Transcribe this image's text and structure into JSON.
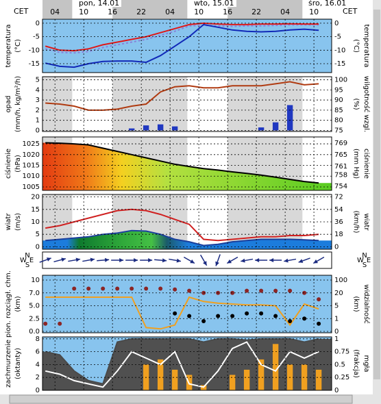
{
  "header": {
    "tz_left": "CET",
    "tz_right": "CET",
    "days": [
      "pon, 14.01",
      "wto, 15.01",
      "śro, 16.01"
    ],
    "xlim": [
      1.4,
      61.7
    ],
    "xticks": [
      {
        "value": 4,
        "label": "04"
      },
      10,
      16,
      22,
      {
        "value": 28,
        "label": "04"
      },
      {
        "value": 34,
        "label": "10"
      },
      {
        "value": 40,
        "label": "16"
      },
      {
        "value": 46,
        "label": "22"
      },
      {
        "value": 52,
        "label": "04"
      },
      {
        "value": 58,
        "label": "10"
      }
    ],
    "night": [
      [
        1.4,
        7.6
      ],
      [
        16,
        31.6
      ],
      [
        40,
        55.6
      ]
    ]
  },
  "chart_data": [
    {
      "type": "line",
      "ylabel": "temperatura",
      "yunit": "(°C)",
      "y2label": "temperatura",
      "y2unit": "(°C)",
      "background": "sky",
      "x": [
        2,
        5,
        8,
        11,
        14,
        17,
        20,
        23,
        26,
        29,
        32,
        35,
        38,
        41,
        44,
        47,
        50,
        53,
        56,
        59
      ],
      "ylim": [
        -18.3,
        1.5
      ],
      "yticks": [
        0,
        -5,
        -10,
        -15
      ],
      "series": [
        {
          "kind": "line",
          "color": "#8a7fd8",
          "dash": true,
          "values": [
            -9.5,
            -10.8,
            -11,
            -10.5,
            -9,
            -8,
            -7,
            -6,
            -4.5,
            -3,
            -1,
            -0.8,
            -1,
            -1.2,
            -1,
            -1,
            -0.8,
            -0.6,
            -0.6,
            -0.6
          ]
        },
        {
          "kind": "line",
          "color": "#e01818",
          "values": [
            -8.5,
            -10,
            -10.2,
            -9.5,
            -8,
            -7,
            -6,
            -5,
            -3.5,
            -2,
            -0.5,
            0,
            -0.3,
            -0.5,
            -0.5,
            -0.3,
            -0.3,
            -0.2,
            -0.3,
            -0.3
          ]
        },
        {
          "kind": "line",
          "color": "#1028b8",
          "values": [
            -14.8,
            -16,
            -16.3,
            -15,
            -14.2,
            -14,
            -14,
            -14.5,
            -12,
            -8.5,
            -5,
            -0.5,
            -1.5,
            -2.5,
            -3,
            -3.2,
            -3,
            -2.5,
            -2.2,
            -2.6
          ]
        }
      ]
    },
    {
      "type": "combo",
      "ylabel": "opad",
      "yunit": "(mm/h, kg/m²/h)",
      "y2label": "wilgotność wzgl.",
      "y2unit": "(%)",
      "background": "daynight",
      "x": [
        2,
        5,
        8,
        11,
        14,
        17,
        20,
        23,
        26,
        29,
        32,
        35,
        38,
        41,
        44,
        47,
        50,
        53,
        56,
        59
      ],
      "ylim": [
        -0.1,
        5.3
      ],
      "yticks": [
        0,
        1,
        2,
        3,
        4,
        5
      ],
      "y2lim": [
        74.5,
        101.5
      ],
      "y2ticks": [
        75,
        80,
        85,
        90,
        95,
        100
      ],
      "series": [
        {
          "kind": "bar",
          "color": "#2038c0",
          "values": [
            0,
            0,
            0,
            0,
            0,
            0,
            0.2,
            0.5,
            0.6,
            0.4,
            0,
            0,
            0,
            0,
            0,
            0.3,
            0.8,
            2.5,
            0,
            0
          ]
        },
        {
          "kind": "line",
          "axis": "y2",
          "color": "#b03a10",
          "values": [
            88.5,
            88,
            87,
            85,
            85,
            85.5,
            87,
            88,
            94,
            96.5,
            97,
            96,
            96,
            97,
            97,
            97,
            98,
            99,
            97.5,
            98
          ]
        }
      ]
    },
    {
      "type": "combo",
      "ylabel": "ciśnienie",
      "yunit": "(hPa)",
      "y2label": "ciśnienie",
      "y2unit": "(mm Hg)",
      "background": "daynight",
      "x": [
        2,
        5,
        8,
        11,
        14,
        17,
        20,
        23,
        26,
        29,
        32,
        35,
        38,
        41,
        44,
        47,
        50,
        53,
        56,
        59
      ],
      "ylim": [
        1003.4,
        1028.2
      ],
      "yticks": [
        1005,
        1010,
        1015,
        1020,
        1025
      ],
      "y2lim": [
        752.6,
        771.2
      ],
      "y2ticks": [
        754,
        758,
        761,
        765,
        769
      ],
      "series": [
        {
          "kind": "area",
          "color": "#000000",
          "fill": "pressure",
          "values": [
            1025.5,
            1025.3,
            1025,
            1024.5,
            1023,
            1021.5,
            1020,
            1018.5,
            1017,
            1015.5,
            1014.5,
            1013.5,
            1012.8,
            1012,
            1011.3,
            1010.5,
            1009.5,
            1008.5,
            1007.5,
            1006.8
          ]
        }
      ]
    },
    {
      "type": "combo",
      "ylabel": "wiatr",
      "yunit": "(m/s)",
      "y2label": "wiatr",
      "y2unit": "(km/h)",
      "background": "daynight",
      "x": [
        2,
        5,
        8,
        11,
        14,
        17,
        20,
        23,
        26,
        29,
        32,
        35,
        38,
        41,
        44,
        47,
        50,
        53,
        56,
        59
      ],
      "ylim": [
        -1,
        21
      ],
      "yticks": [
        0,
        5,
        10,
        15,
        20
      ],
      "y2lim": [
        -3.6,
        75.6
      ],
      "y2ticks": [
        0,
        18,
        36,
        54,
        72
      ],
      "series": [
        {
          "kind": "area",
          "color": "#1a3f9c",
          "fill": "wind",
          "values": [
            2.5,
            3,
            3.5,
            4,
            5,
            5.5,
            6.5,
            6.3,
            5,
            3,
            2,
            0.5,
            1,
            2,
            2.5,
            3,
            3,
            3,
            2.8,
            2.5
          ]
        },
        {
          "kind": "line",
          "color": "#d02020",
          "values": [
            7.5,
            8.5,
            10,
            11.5,
            13,
            14.5,
            15,
            14.5,
            13,
            11,
            9,
            3,
            2.5,
            3,
            3.5,
            4,
            4,
            4.5,
            4.5,
            5
          ]
        }
      ],
      "compass": [
        "N",
        "S",
        "W",
        "E"
      ],
      "direction": [
        250,
        255,
        260,
        260,
        265,
        270,
        270,
        270,
        275,
        280,
        300,
        330,
        20,
        60,
        80,
        90,
        90,
        80,
        70,
        60
      ]
    },
    {
      "type": "combo",
      "ylabel": "pion. rozciągł. chm.",
      "yunit": "(km)",
      "y2label": "widzialność",
      "y2unit": "(km)",
      "background": "sky",
      "yscale": "ticks-even",
      "x": [
        2,
        5,
        8,
        11,
        14,
        17,
        20,
        23,
        26,
        29,
        32,
        35,
        38,
        41,
        44,
        47,
        50,
        53,
        56,
        59
      ],
      "ylim": [
        0,
        10
      ],
      "yticks": [
        {
          "value": 0,
          "label": "0.0"
        },
        2.5,
        {
          "value": 5,
          "label": "5.0"
        },
        {
          "value": 7,
          "label": "7.0"
        },
        10
      ],
      "y2lim": [
        0,
        100
      ],
      "y2ticks": [
        0,
        1,
        5,
        20,
        100
      ],
      "series": [
        {
          "kind": "line",
          "axis": "y2",
          "color": "#f0a020",
          "values": [
            15,
            15,
            15,
            15,
            15,
            15,
            15,
            0.3,
            0.2,
            0.5,
            15,
            10,
            8,
            7,
            6,
            6,
            5,
            0.5,
            7,
            4
          ]
        },
        {
          "kind": "dots",
          "color": "#8b2525",
          "values": [
            1.5,
            1.5,
            8,
            8,
            8,
            8,
            8,
            8,
            8,
            7.8,
            7.5,
            7,
            7,
            7,
            7.5,
            7.5,
            7.5,
            7.5,
            7,
            6
          ]
        },
        {
          "kind": "dots",
          "color": "#000000",
          "values": [
            null,
            null,
            null,
            null,
            null,
            null,
            null,
            null,
            null,
            3.5,
            3,
            2,
            3,
            3,
            3.5,
            3.5,
            3,
            2,
            2.5,
            1.5
          ]
        }
      ]
    },
    {
      "type": "combo",
      "ylabel": "zachmurzenie",
      "yunit": "(oktanty)",
      "y2label": "mgła",
      "y2unit": "(frakcja)",
      "background": "sky",
      "x": [
        2,
        5,
        8,
        11,
        14,
        17,
        20,
        23,
        26,
        29,
        32,
        35,
        38,
        41,
        44,
        47,
        50,
        53,
        56,
        59
      ],
      "ylim": [
        0,
        8.3
      ],
      "yticks": [
        0,
        2,
        4,
        6,
        8
      ],
      "y2lim": [
        0,
        1.0375
      ],
      "y2ticks": [
        0,
        0.25,
        0.5,
        0.75,
        1
      ],
      "series": [
        {
          "kind": "area",
          "color": "#4a4a4a",
          "fill": "#505050",
          "values": [
            6,
            5.5,
            3,
            1.5,
            1,
            7.5,
            8,
            8,
            8,
            8,
            8,
            7.5,
            8,
            8,
            7.8,
            8,
            8,
            8,
            7.5,
            8
          ]
        },
        {
          "kind": "bar",
          "axis": "y2",
          "color": "#f0a020",
          "values": [
            0,
            0,
            0,
            0,
            0,
            0,
            0,
            0.5,
            0.6,
            0.4,
            0.3,
            0.1,
            0,
            0.3,
            0.4,
            0.6,
            0.9,
            0.5,
            0.5,
            0.4
          ]
        },
        {
          "kind": "line",
          "color": "#ffffff",
          "values": [
            3,
            2.5,
            1.5,
            1,
            0.5,
            3,
            6,
            5,
            4,
            6,
            1,
            0.5,
            3,
            6.5,
            7.5,
            4,
            3,
            6,
            5,
            6
          ]
        }
      ]
    }
  ]
}
